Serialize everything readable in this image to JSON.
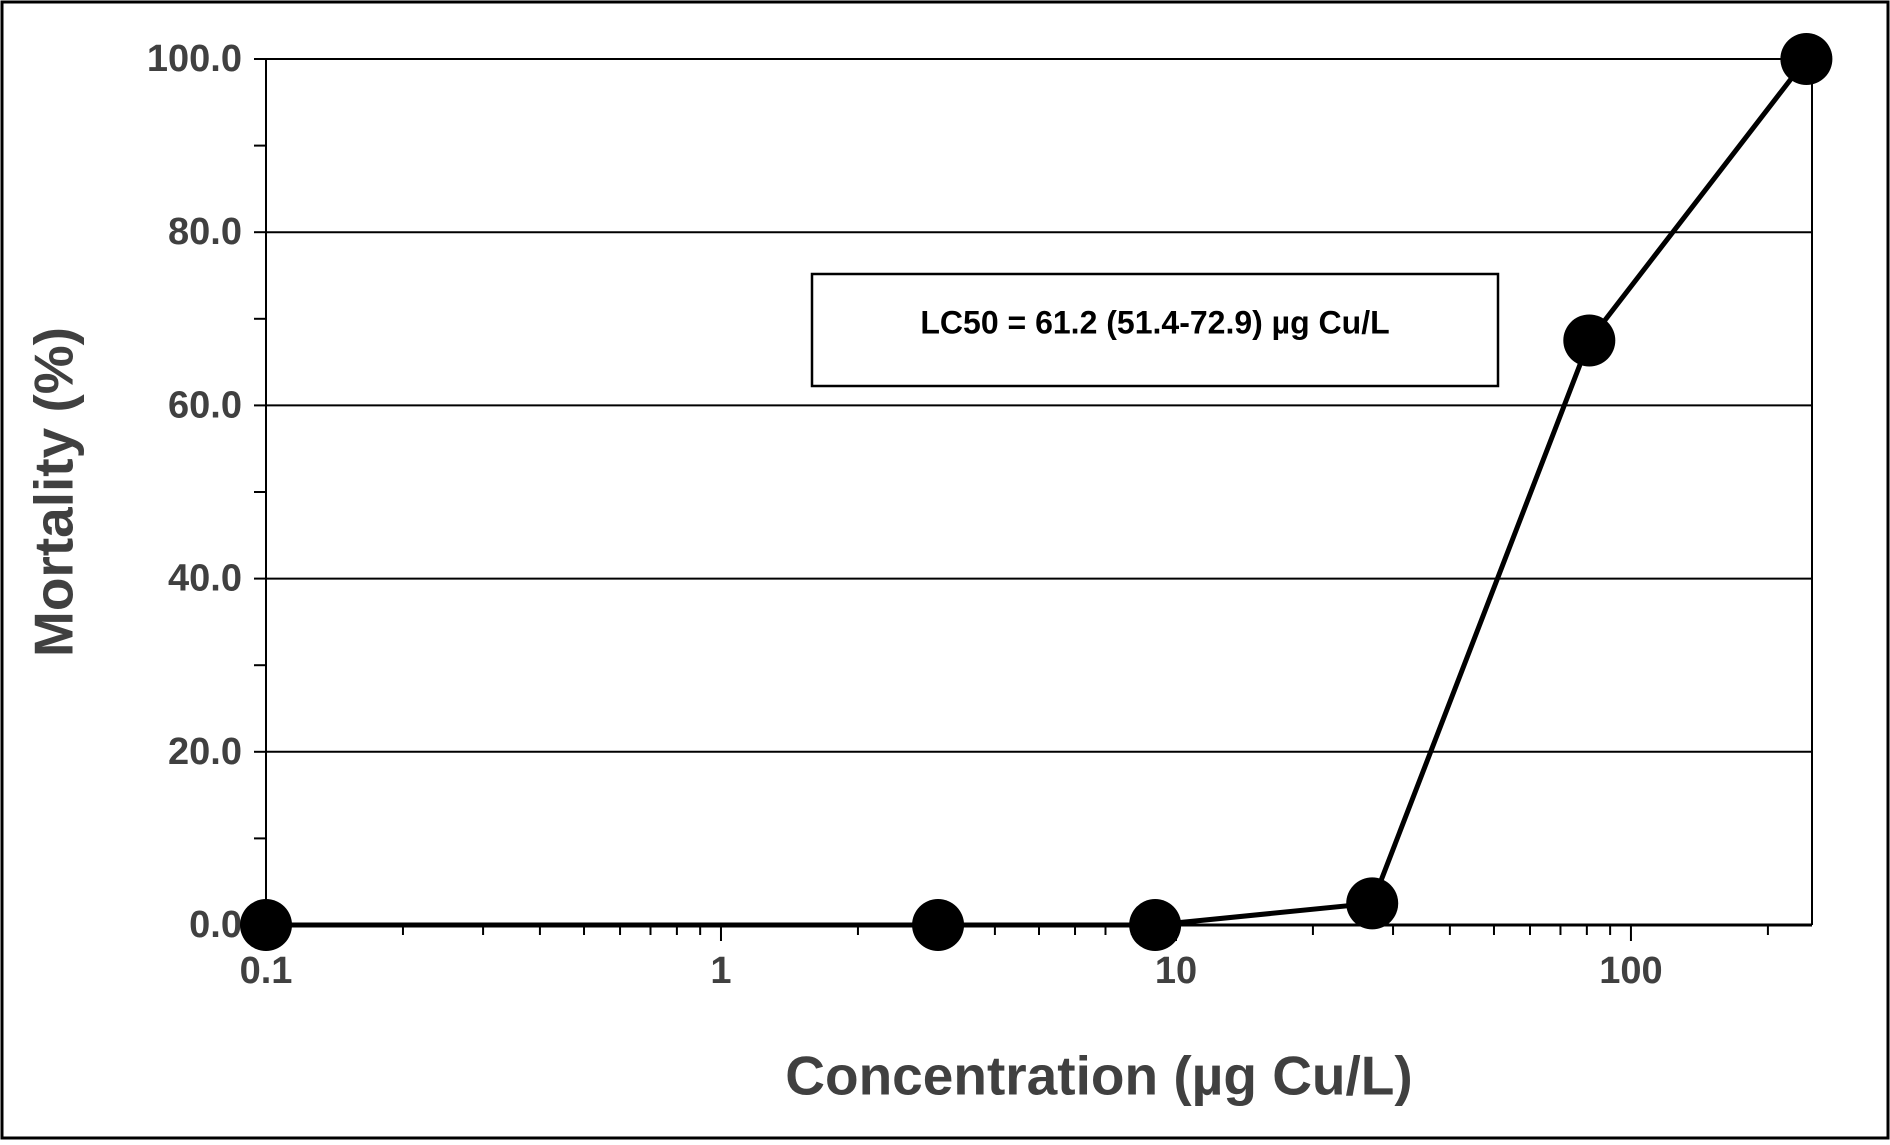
{
  "chart_data": {
    "type": "line",
    "x_label": "Concentration (µg Cu/L)",
    "y_label": "Mortality (%)",
    "annotation": "LC50 = 61.2 (51.4-72.9) µg Cu/L",
    "x": [
      0.1,
      3,
      9,
      27,
      81,
      243
    ],
    "values": [
      0,
      0,
      0,
      2.5,
      67.5,
      100
    ],
    "color": "#000000",
    "xscale": "log",
    "xlim": [
      0.1,
      250
    ],
    "xticks": [
      0.1,
      1,
      10,
      100
    ],
    "xminorticks": [
      0.2,
      0.3,
      0.4,
      0.5,
      0.6,
      0.7,
      0.8,
      0.9,
      2,
      3,
      4,
      5,
      6,
      7,
      8,
      9,
      20,
      30,
      40,
      50,
      60,
      70,
      80,
      90,
      200
    ],
    "ylim": [
      0,
      100
    ],
    "yticks": [
      {
        "value": 0,
        "label": "0.0"
      },
      {
        "value": 20,
        "label": "20.0"
      },
      {
        "value": 40,
        "label": "40.0"
      },
      {
        "value": 60,
        "label": "60.0"
      },
      {
        "value": 80,
        "label": "80.0"
      },
      {
        "value": 100,
        "label": "100.0"
      }
    ],
    "yminorticks": [
      10,
      30,
      50,
      70,
      90
    ],
    "grid": true
  }
}
